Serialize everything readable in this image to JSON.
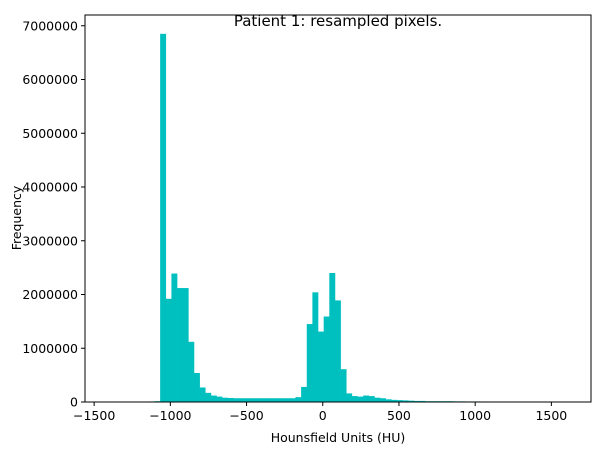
{
  "chart_data": {
    "type": "bar",
    "title": "Patient 1: resampled pixels.",
    "xlabel": "Hounsfield Units (HU)",
    "ylabel": "Frequency",
    "xlim": [
      -1560,
      1760
    ],
    "ylim": [
      0,
      7200000
    ],
    "xticks": [
      -1500,
      -1000,
      -500,
      0,
      500,
      1000,
      1500
    ],
    "xtick_labels": [
      "−1500",
      "−1000",
      "−500",
      "0",
      "500",
      "1000",
      "1500"
    ],
    "yticks": [
      0,
      1000000,
      2000000,
      3000000,
      4000000,
      5000000,
      6000000,
      7000000
    ],
    "ytick_labels": [
      "0",
      "1000000",
      "2000000",
      "3000000",
      "4000000",
      "5000000",
      "6000000",
      "7000000"
    ],
    "grid": false,
    "legend": false,
    "bar_color": "#00bfbf",
    "bin_start": -1400,
    "bin_width": 37,
    "values": [
      0,
      0,
      0,
      0,
      0,
      5000,
      8000,
      10000,
      15000,
      6850000,
      1920000,
      2390000,
      2120000,
      2120000,
      1120000,
      540000,
      270000,
      170000,
      120000,
      100000,
      80000,
      75000,
      70000,
      70000,
      70000,
      70000,
      70000,
      70000,
      70000,
      70000,
      70000,
      70000,
      70000,
      90000,
      280000,
      1450000,
      2040000,
      1310000,
      1590000,
      2400000,
      1890000,
      610000,
      160000,
      110000,
      100000,
      120000,
      110000,
      80000,
      70000,
      50000,
      40000,
      35000,
      30000,
      25000,
      20000,
      20000,
      15000,
      15000,
      15000,
      15000,
      15000,
      12000,
      12000,
      10000,
      10000,
      10000,
      0,
      0,
      0,
      0,
      0,
      0,
      0,
      0,
      0,
      0,
      0,
      0,
      0,
      0,
      0,
      0,
      0,
      0,
      0,
      0,
      0,
      0,
      0,
      0
    ]
  }
}
